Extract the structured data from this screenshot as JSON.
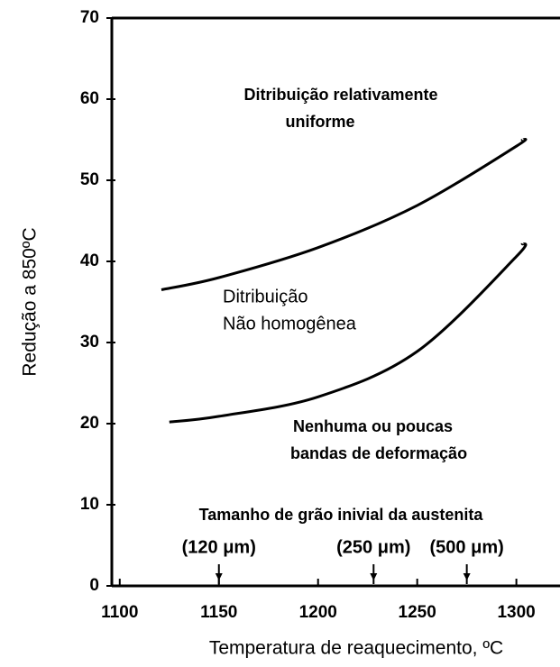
{
  "chart_data": {
    "type": "line",
    "xlabel": "Temperatura de reaquecimento, ºC",
    "ylabel": "Redução a 850ºC",
    "xlim": [
      1096,
      1322
    ],
    "xticks": [
      1100,
      1150,
      1200,
      1250,
      1300
    ],
    "ylim": [
      0,
      70
    ],
    "yticks": [
      0,
      10,
      20,
      30,
      40,
      50,
      60,
      70
    ],
    "color": "#000000",
    "series": [
      {
        "x": [
          1121,
          1150,
          1200,
          1250,
          1300,
          1303
        ],
        "values": [
          36.5,
          38,
          41.7,
          46.9,
          54.2,
          55
        ]
      },
      {
        "x": [
          1125,
          1150,
          1200,
          1250,
          1300,
          1303
        ],
        "values": [
          20.2,
          20.9,
          23.3,
          28.9,
          40.6,
          42.2
        ]
      }
    ],
    "annotations": [
      "Ditribuição relativamente",
      "uniforme",
      "Ditribuição",
      "Não homogênea",
      "Nenhuma ou poucas",
      "bandas de deformação",
      "Tamanho de grão inivial da austenita"
    ],
    "markers": [
      {
        "x": 1150,
        "label": "(120 μm)"
      },
      {
        "x": 1228,
        "label": "(250 μm)"
      },
      {
        "x": 1275,
        "label": "(500 μm)"
      }
    ]
  }
}
